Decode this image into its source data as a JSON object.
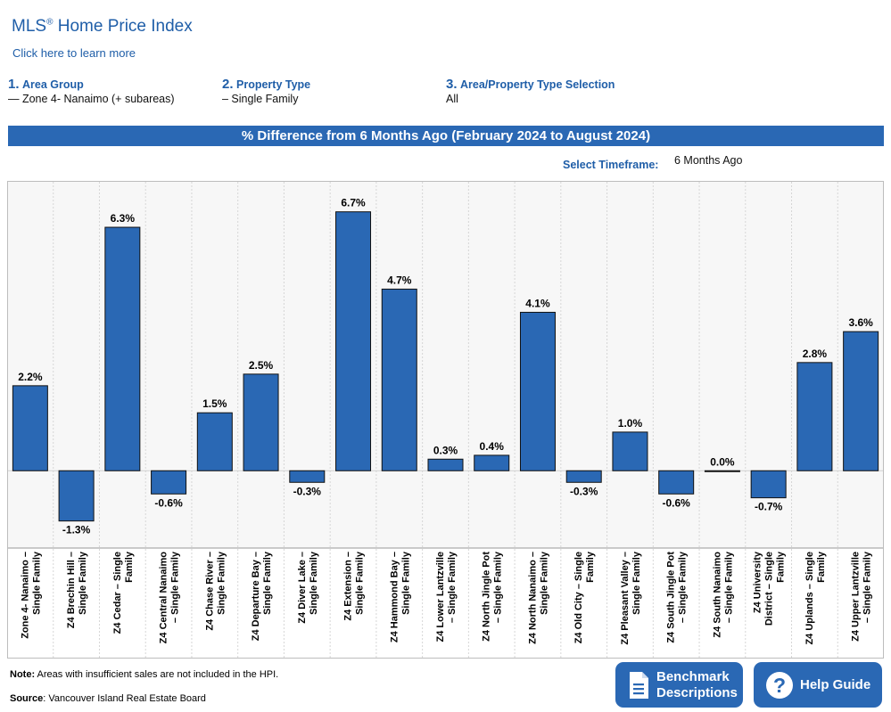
{
  "header": {
    "title": "MLS",
    "title_reg": "®",
    "title_rest": " Home Price Index",
    "learn_link": "Click here to learn more"
  },
  "steps": [
    {
      "num": "1.",
      "label": "Area Group",
      "value": "— Zone 4- Nanaimo (+ subareas)"
    },
    {
      "num": "2.",
      "label": "Property Type",
      "value": "– Single Family"
    },
    {
      "num": "3.",
      "label": "Area/Property Type Selection",
      "value": "All"
    }
  ],
  "banner": "% Difference from 6 Months Ago (February 2024 to August 2024)",
  "timeframe": {
    "label": "Select Timeframe:",
    "value": "6 Months Ago"
  },
  "colors": {
    "accent": "#2a68b4",
    "bar": "#2a68b4",
    "plot_bg": "#f7f7f7"
  },
  "chart_data": {
    "type": "bar",
    "categories": [
      [
        "Zone 4- Nanaimo –",
        "Single Family"
      ],
      [
        "Z4 Brechin Hill –",
        "Single Family"
      ],
      [
        "Z4 Cedar – Single",
        "Family"
      ],
      [
        "Z4 Central Nanaimo",
        "– Single Family"
      ],
      [
        "Z4 Chase River –",
        "Single Family"
      ],
      [
        "Z4 Departure Bay –",
        "Single Family"
      ],
      [
        "Z4 Diver Lake –",
        "Single Family"
      ],
      [
        "Z4 Extension –",
        "Single Family"
      ],
      [
        "Z4 Hammond Bay –",
        "Single Family"
      ],
      [
        "Z4 Lower Lantzville",
        "– Single Family"
      ],
      [
        "Z4 North Jingle Pot",
        "– Single Family"
      ],
      [
        "Z4 North Nanaimo –",
        "Single Family"
      ],
      [
        "Z4 Old City – Single",
        "Family"
      ],
      [
        "Z4 Pleasant Valley –",
        "Single Family"
      ],
      [
        "Z4 South Jingle Pot",
        "– Single Family"
      ],
      [
        "Z4 South Nanaimo",
        "– Single Family"
      ],
      [
        "Z4 University",
        "District – Single",
        "Family"
      ],
      [
        "Z4 Uplands – Single",
        "Family"
      ],
      [
        "Z4 Upper Lantzville",
        "– Single Family"
      ]
    ],
    "values": [
      2.2,
      -1.3,
      6.3,
      -0.6,
      1.5,
      2.5,
      -0.3,
      6.7,
      4.7,
      0.3,
      0.4,
      4.1,
      -0.3,
      1.0,
      -0.6,
      0.0,
      -0.7,
      2.8,
      3.6
    ],
    "labels": [
      "2.2%",
      "-1.3%",
      "6.3%",
      "-0.6%",
      "1.5%",
      "2.5%",
      "-0.3%",
      "6.7%",
      "4.7%",
      "0.3%",
      "0.4%",
      "4.1%",
      "-0.3%",
      "1.0%",
      "-0.6%",
      "0.0%",
      "-0.7%",
      "2.8%",
      "3.6%"
    ],
    "ylim": [
      -2,
      7.5
    ],
    "grid": "vertical dotted",
    "title": "",
    "xlabel": "",
    "ylabel": ""
  },
  "footer": {
    "note_label": "Note:",
    "note_text": " Areas with insufficient sales are not included in the HPI.",
    "source_label": "Source",
    "source_text": ": Vancouver Island Real Estate Board"
  },
  "buttons": {
    "benchmark": [
      "Benchmark",
      "Descriptions"
    ],
    "help": "Help Guide",
    "help_glyph": "?"
  }
}
